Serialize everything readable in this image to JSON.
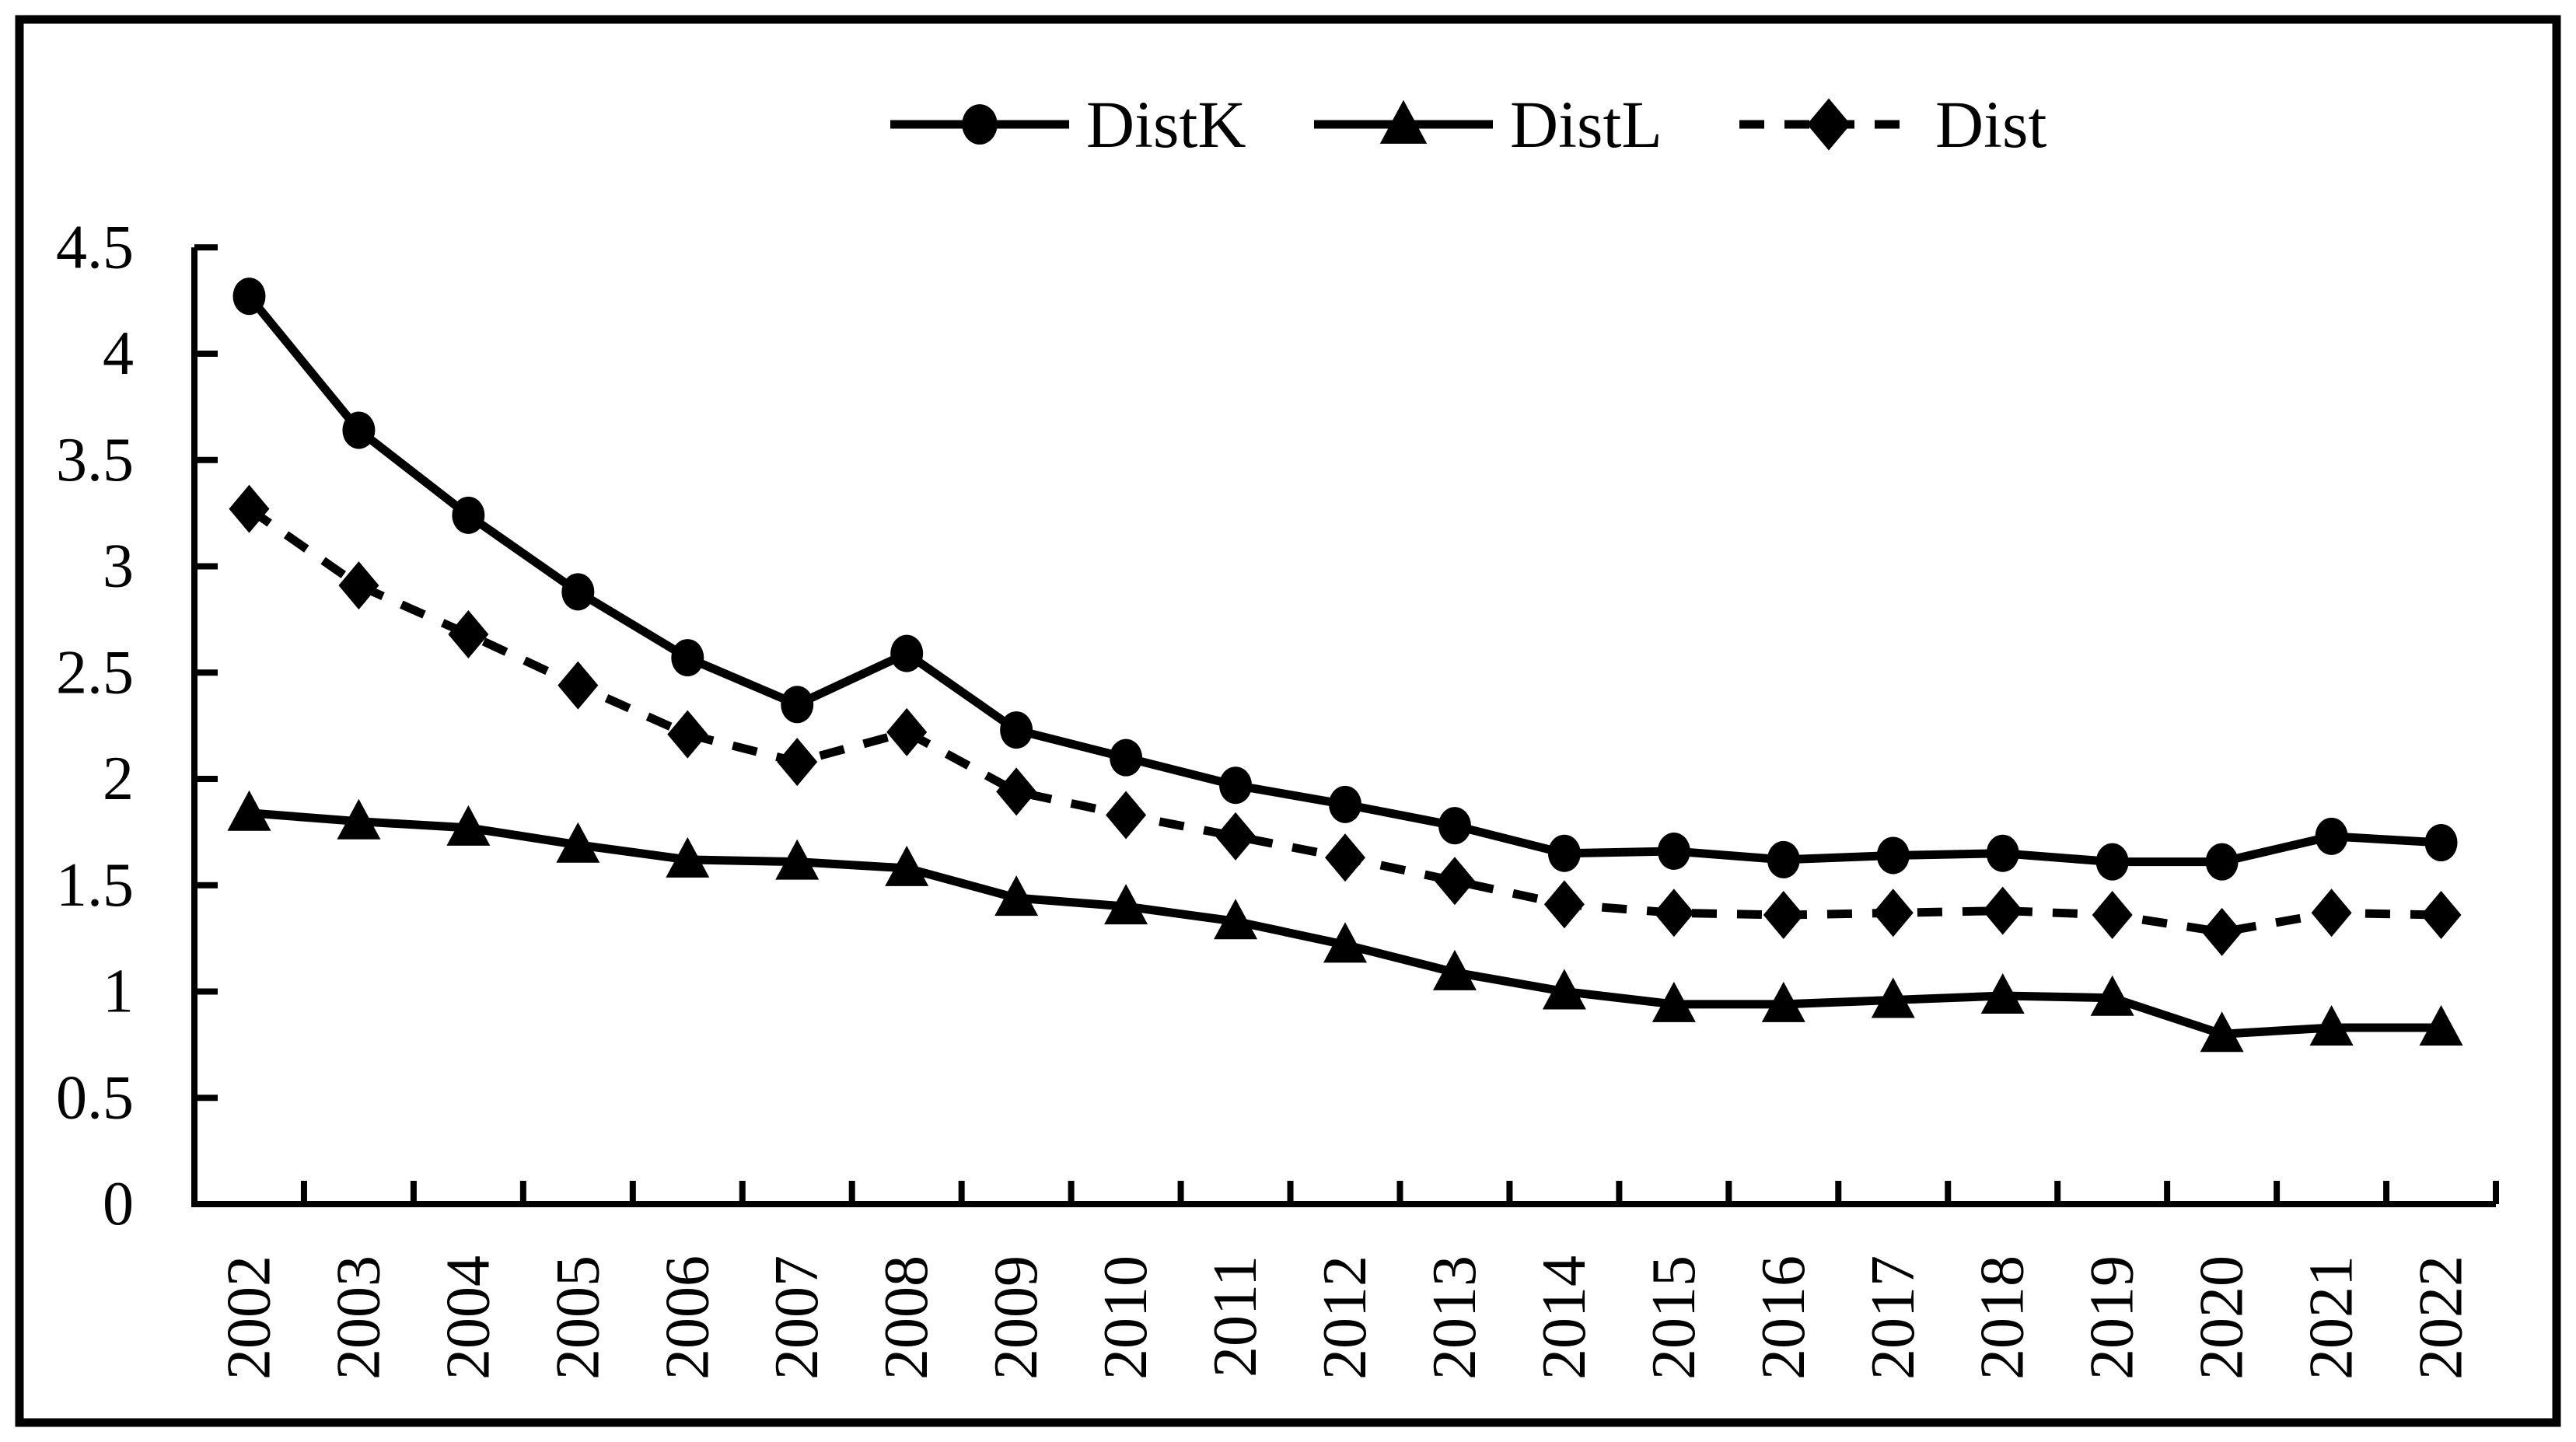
{
  "chart_data": {
    "type": "line",
    "title": "",
    "xlabel": "",
    "ylabel": "",
    "categories": [
      "2002",
      "2003",
      "2004",
      "2005",
      "2006",
      "2007",
      "2008",
      "2009",
      "2010",
      "2011",
      "2012",
      "2013",
      "2014",
      "2015",
      "2016",
      "2017",
      "2018",
      "2019",
      "2020",
      "2021",
      "2022"
    ],
    "series": [
      {
        "name": "DistK",
        "marker": "circle",
        "line_style": "solid",
        "values": [
          4.27,
          3.64,
          3.24,
          2.88,
          2.57,
          2.35,
          2.59,
          2.23,
          2.1,
          1.97,
          1.88,
          1.78,
          1.65,
          1.66,
          1.62,
          1.64,
          1.65,
          1.61,
          1.61,
          1.73,
          1.7
        ]
      },
      {
        "name": "DistL",
        "marker": "triangle",
        "line_style": "solid",
        "values": [
          1.84,
          1.8,
          1.77,
          1.69,
          1.62,
          1.61,
          1.58,
          1.44,
          1.4,
          1.33,
          1.22,
          1.09,
          1.0,
          0.94,
          0.94,
          0.96,
          0.98,
          0.97,
          0.8,
          0.83,
          0.83
        ]
      },
      {
        "name": "Dist",
        "marker": "diamond",
        "line_style": "dashed",
        "values": [
          3.27,
          2.91,
          2.68,
          2.44,
          2.21,
          2.08,
          2.22,
          1.94,
          1.83,
          1.73,
          1.63,
          1.52,
          1.41,
          1.37,
          1.36,
          1.37,
          1.38,
          1.36,
          1.28,
          1.37,
          1.36
        ]
      }
    ],
    "ylim": [
      0,
      4.5
    ],
    "ytick_step": 0.5,
    "ytick_labels": [
      "4.5",
      "4",
      "3.5",
      "3",
      "2.5",
      "2",
      "1.5",
      "1",
      "0.5",
      "0"
    ],
    "ytick_values": [
      4.5,
      4,
      3.5,
      3,
      2.5,
      2,
      1.5,
      1,
      0.5,
      0
    ],
    "legend": {
      "position": "top-center",
      "entries": [
        "DistK",
        "DistL",
        "Dist"
      ]
    },
    "grid": false,
    "colors": {
      "foreground": "#000000",
      "background": "#ffffff"
    }
  }
}
